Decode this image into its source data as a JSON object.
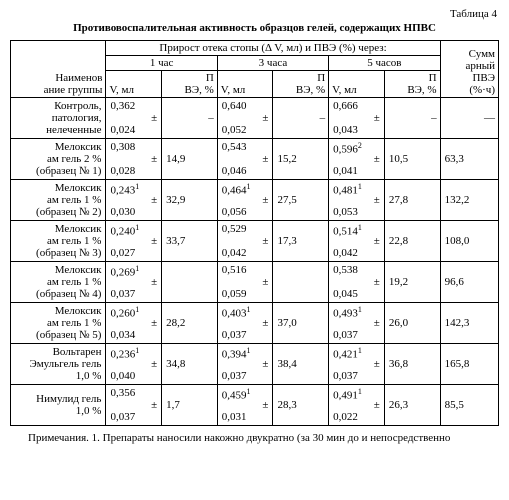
{
  "table_label": "Таблица 4",
  "title": "Противовоспалительная активность образцов гелей, содержащих НПВС",
  "header": {
    "group": "Наименов\nание группы",
    "span_top": "Прирост отека стопы (Δ V, мл) и ПВЭ (%) через:",
    "h1": "1 час",
    "h3": "3 часа",
    "h5": "5 часов",
    "v": "V, мл",
    "p": "П\nВЭ, %",
    "sum": "Сумм\nарный\nПВЭ\n(%·ч)"
  },
  "rows": [
    {
      "name": "Контроль, патология, нелеченные",
      "v1m": "0,362",
      "v1s": "0,024",
      "p1": "–",
      "v3m": "0,640",
      "v3s": "0,052",
      "p3": "–",
      "v5m": "0,666",
      "v5s": "0,043",
      "p5": "–",
      "sum": "—"
    },
    {
      "name": "Мелоксик\nам гель 2 % (образец № 1)",
      "v1m": "0,308",
      "v1s": "0,028",
      "p1": "14,9",
      "v3m": "0,543",
      "v3s": "0,046",
      "p3": "15,2",
      "v5m": "0,596",
      "v5sup": "2",
      "v5s": "0,041",
      "p5": "10,5",
      "sum": "63,3"
    },
    {
      "name": "Мелоксик\nам гель 1 % (образец № 2)",
      "v1m": "0,243",
      "v1sup": "1",
      "v1s": "0,030",
      "p1": "32,9",
      "v3m": "0,464",
      "v3sup": "1",
      "v3s": "0,056",
      "p3": "27,5",
      "v5m": "0,481",
      "v5sup": "1",
      "v5s": "0,053",
      "p5": "27,8",
      "sum": "132,2"
    },
    {
      "name": "Мелоксик\nам гель 1 % (образец № 3)",
      "v1m": "0,240",
      "v1sup": "1",
      "v1s": "0,027",
      "p1": "33,7",
      "v3m": "0,529",
      "v3s": "0,042",
      "p3": "17,3",
      "v5m": "0,514",
      "v5sup": "1",
      "v5s": "0,042",
      "p5": "22,8",
      "sum": "108,0"
    },
    {
      "name": "Мелоксик\nам гель 1 % (образец № 4)",
      "v1m": "0,269",
      "v1sup": "1",
      "v1s": "0,037",
      "p1": "",
      "v3m": "0,516",
      "v3s": "0,059",
      "p3": "",
      "v5m": "0,538",
      "v5s": "0,045",
      "p5": "19,2",
      "sum": "96,6"
    },
    {
      "name": "Мелоксик\nам гель 1 % (образец № 5)",
      "v1m": "0,260",
      "v1sup": "1",
      "v1s": "0,034",
      "p1": "28,2",
      "v3m": "0,403",
      "v3sup": "1",
      "v3s": "0,037",
      "p3": "37,0",
      "v5m": "0,493",
      "v5sup": "1",
      "v5s": "0,037",
      "p5": "26,0",
      "sum": "142,3"
    },
    {
      "name": "Вольтарен Эмульгель гель 1,0 %",
      "v1m": "0,236",
      "v1sup": "1",
      "v1s": "0,040",
      "p1": "34,8",
      "v3m": "0,394",
      "v3sup": "1",
      "v3s": "0,037",
      "p3": "38,4",
      "v5m": "0,421",
      "v5sup": "1",
      "v5s": "0,037",
      "p5": "36,8",
      "sum": "165,8"
    },
    {
      "name": "Нимулид гель\n1,0 %",
      "v1m": "0,356",
      "v1s": "0,037",
      "p1": "1,7",
      "v3m": "0,459",
      "v3sup": "1",
      "v3s": "0,031",
      "p3": "28,3",
      "v5m": "0,491",
      "v5sup": "1",
      "v5s": "0,022",
      "p5": "26,3",
      "sum": "85,5"
    }
  ],
  "footnote": "Примечания. 1. Препараты наносили накожно двукратно (за 30 мин до и непосредственно",
  "pm": "±"
}
